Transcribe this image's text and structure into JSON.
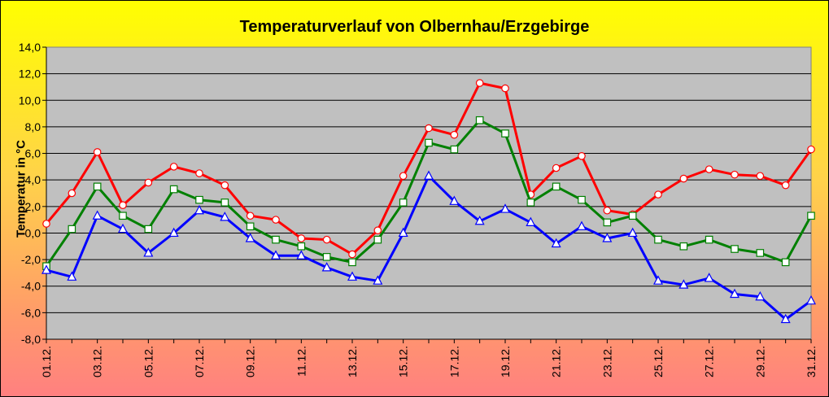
{
  "chart_data": {
    "type": "line",
    "title": "Temperaturverlauf von Olbernhau/Erzgebirge",
    "xlabel": "",
    "ylabel": "Temperatur in °C",
    "ylim": [
      -8,
      14
    ],
    "yticks": [
      "-8,0",
      "-6,0",
      "-4,0",
      "-2,0",
      "0,0",
      "2,0",
      "4,0",
      "6,0",
      "8,0",
      "10,0",
      "12,0",
      "14,0"
    ],
    "x_tick_labels": [
      "01.12.",
      "03.12.",
      "05.12.",
      "07.12.",
      "09.12.",
      "11.12.",
      "13.12.",
      "15.12.",
      "17.12.",
      "19.12.",
      "21.12.",
      "23.12.",
      "25.12.",
      "27.12.",
      "29.12.",
      "31.12."
    ],
    "x": [
      "01.12.",
      "02.12.",
      "03.12.",
      "04.12.",
      "05.12.",
      "06.12.",
      "07.12.",
      "08.12.",
      "09.12.",
      "10.12.",
      "11.12.",
      "12.12.",
      "13.12.",
      "14.12.",
      "15.12.",
      "16.12.",
      "17.12.",
      "18.12.",
      "19.12.",
      "20.12.",
      "21.12.",
      "22.12.",
      "23.12.",
      "24.12.",
      "25.12.",
      "26.12.",
      "27.12.",
      "28.12.",
      "29.12.",
      "30.12.",
      "31.12."
    ],
    "grid": true,
    "series": [
      {
        "color": "#ff0000",
        "marker": "circle",
        "values": [
          0.7,
          3.0,
          6.1,
          2.1,
          3.8,
          5.0,
          4.5,
          3.6,
          1.3,
          1.0,
          -0.4,
          -0.5,
          -1.6,
          0.2,
          4.3,
          7.9,
          7.4,
          11.3,
          10.9,
          2.9,
          4.9,
          5.8,
          1.7,
          1.4,
          2.9,
          4.1,
          4.8,
          4.4,
          4.3,
          3.6,
          6.3
        ]
      },
      {
        "color": "#008000",
        "marker": "square",
        "values": [
          -2.5,
          0.3,
          3.5,
          1.3,
          0.3,
          3.3,
          2.5,
          2.3,
          0.5,
          -0.5,
          -1.0,
          -1.8,
          -2.2,
          -0.5,
          2.3,
          6.8,
          6.3,
          8.5,
          7.5,
          2.3,
          3.5,
          2.5,
          0.8,
          1.3,
          -0.5,
          -1.0,
          -0.5,
          -1.2,
          -1.5,
          -2.2,
          1.3
        ]
      },
      {
        "color": "#0000ff",
        "marker": "triangle",
        "values": [
          -2.8,
          -3.3,
          1.3,
          0.3,
          -1.5,
          0.0,
          1.7,
          1.2,
          -0.4,
          -1.7,
          -1.7,
          -2.6,
          -3.3,
          -3.6,
          0.0,
          4.3,
          2.4,
          0.9,
          1.8,
          0.8,
          -0.8,
          0.5,
          -0.4,
          0.0,
          -3.6,
          -3.9,
          -3.4,
          -4.6,
          -4.8,
          -6.5,
          -5.1
        ]
      }
    ],
    "colors": {
      "plot_background": "#c0c0c0",
      "frame_top": "#ffff00",
      "frame_bottom": "#ff8080"
    }
  }
}
